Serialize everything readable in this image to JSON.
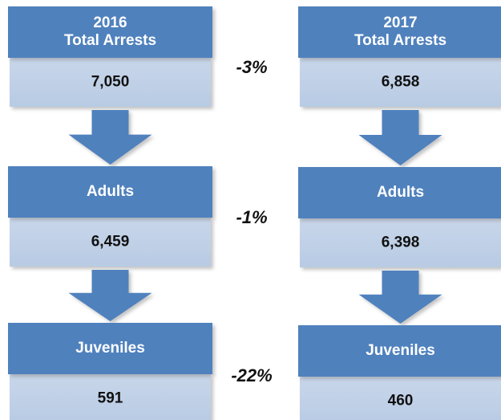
{
  "columns": [
    {
      "blocks": [
        {
          "header": [
            "2016",
            "Total Arrests"
          ],
          "value": "7,050"
        },
        {
          "header": [
            "Adults"
          ],
          "value": "6,459"
        },
        {
          "header": [
            "Juveniles"
          ],
          "value": "591"
        }
      ]
    },
    {
      "blocks": [
        {
          "header": [
            "2017",
            "Total Arrests"
          ],
          "value": "6,858"
        },
        {
          "header": [
            "Adults"
          ],
          "value": "6,398"
        },
        {
          "header": [
            "Juveniles"
          ],
          "value": "460"
        }
      ]
    }
  ],
  "changes": [
    "-3%",
    "-1%",
    "-22%"
  ]
}
